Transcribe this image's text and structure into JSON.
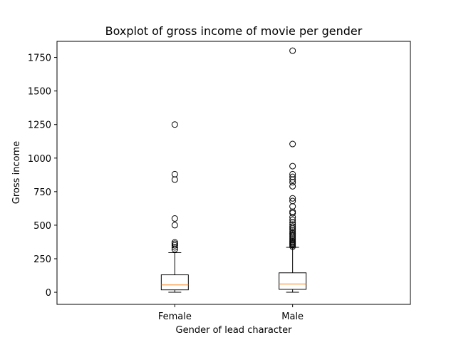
{
  "chart_data": {
    "type": "boxplot",
    "title": "Boxplot of gross income of movie per gender",
    "xlabel": "Gender of lead character",
    "ylabel": "Gross income",
    "categories": [
      "Female",
      "Male"
    ],
    "ylim": [
      -90,
      1870
    ],
    "yticks": [
      0,
      250,
      500,
      750,
      1000,
      1250,
      1500,
      1750
    ],
    "grid": false,
    "colors": {
      "box": "#000000",
      "median": "#ff7f0e",
      "flier": "#000000"
    },
    "boxes": [
      {
        "name": "Female",
        "whislo": 0,
        "q1": 18,
        "median": 55,
        "q3": 130,
        "whishi": 295,
        "fliers": [
          320,
          335,
          350,
          362,
          372,
          500,
          550,
          840,
          880,
          1250
        ]
      },
      {
        "name": "Male",
        "whislo": 0,
        "q1": 22,
        "median": 62,
        "q3": 145,
        "whishi": 335,
        "fliers": [
          340,
          350,
          358,
          365,
          372,
          380,
          390,
          400,
          410,
          420,
          430,
          440,
          452,
          465,
          478,
          490,
          505,
          520,
          540,
          560,
          590,
          600,
          640,
          680,
          700,
          790,
          820,
          840,
          860,
          880,
          940,
          1105,
          1800
        ]
      }
    ]
  }
}
